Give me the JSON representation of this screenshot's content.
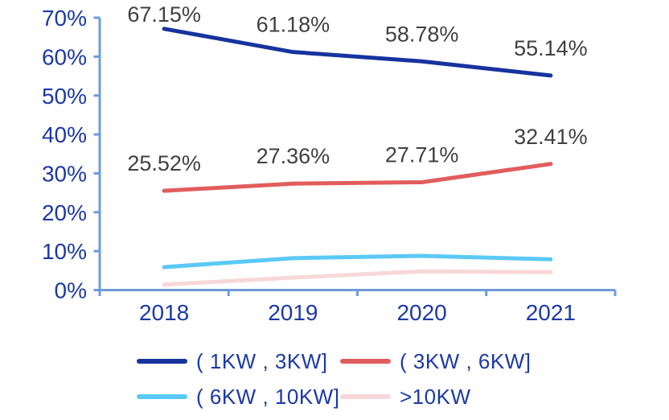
{
  "chart_data": {
    "type": "line",
    "title": "",
    "xlabel": "",
    "ylabel": "",
    "categories": [
      "2018",
      "2019",
      "2020",
      "2021"
    ],
    "series": [
      {
        "name": "( 1KW , 3KW]",
        "color": "#16339E",
        "values": [
          67.15,
          61.18,
          58.78,
          55.14
        ],
        "point_labels": [
          "67.15%",
          "61.18%",
          "58.78%",
          "55.14%"
        ]
      },
      {
        "name": "( 3KW , 6KW]",
        "color": "#E15D5C",
        "values": [
          25.52,
          27.36,
          27.71,
          32.41
        ],
        "point_labels": [
          "25.52%",
          "27.36%",
          "27.71%",
          "32.41%"
        ]
      },
      {
        "name": "( 6KW , 10KW]",
        "color": "#5BC9F5",
        "values": [
          5.9,
          8.2,
          8.8,
          7.9
        ],
        "point_labels": []
      },
      {
        "name": ">10KW",
        "color": "#F8D7D9",
        "values": [
          1.4,
          3.2,
          4.8,
          4.6
        ],
        "point_labels": []
      }
    ],
    "ylim": [
      0,
      70
    ],
    "ytick_step": 10,
    "ytick_labels": [
      "0%",
      "10%",
      "20%",
      "30%",
      "40%",
      "50%",
      "60%",
      "70%"
    ],
    "grid": false,
    "legend_position": "bottom",
    "colors": {
      "axis_line": "#6E9BD8",
      "tick_label": "#1C39A5",
      "data_label": "#404040"
    }
  }
}
